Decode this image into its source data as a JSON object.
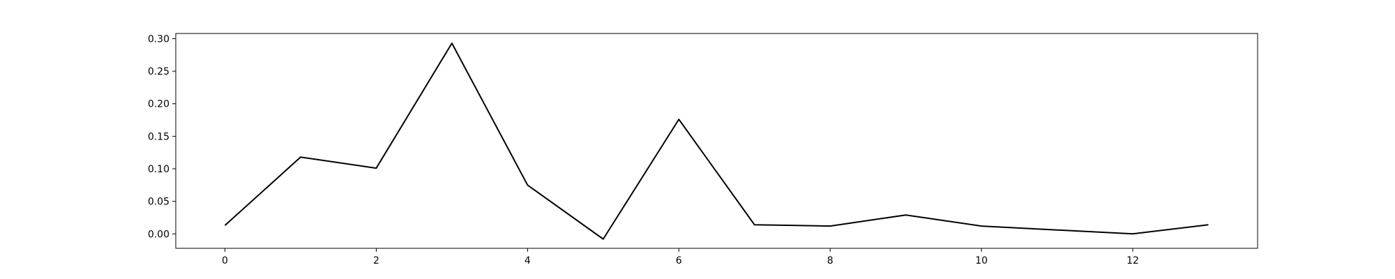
{
  "chart_data": {
    "type": "line",
    "title": "",
    "xlabel": "",
    "ylabel": "",
    "x": [
      0,
      1,
      2,
      3,
      4,
      5,
      6,
      7,
      8,
      9,
      10,
      11,
      12,
      13
    ],
    "series": [
      {
        "values": [
          0.013,
          0.118,
          0.101,
          0.293,
          0.075,
          -0.008,
          0.176,
          0.014,
          0.012,
          0.029,
          0.012,
          0.006,
          0.0,
          0.014
        ],
        "color": "#000000"
      }
    ],
    "xlim": [
      -0.65,
      13.65
    ],
    "ylim": [
      -0.0222,
      0.308
    ],
    "xticks": [
      0,
      2,
      4,
      6,
      8,
      10,
      12
    ],
    "xtick_labels": [
      "0",
      "2",
      "4",
      "6",
      "8",
      "10",
      "12"
    ],
    "yticks": [
      0.0,
      0.05,
      0.1,
      0.15,
      0.2,
      0.25,
      0.3
    ],
    "ytick_labels": [
      "0.00",
      "0.05",
      "0.10",
      "0.15",
      "0.20",
      "0.25",
      "0.30"
    ],
    "grid": false,
    "legend": "none"
  }
}
